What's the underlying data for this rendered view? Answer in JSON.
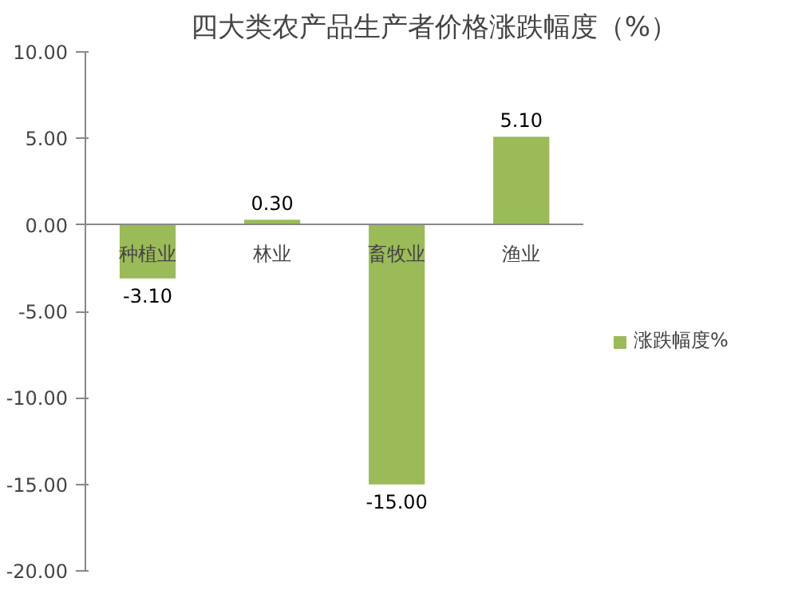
{
  "chart_data": {
    "type": "bar",
    "title": "四大类农产品生产者价格涨跌幅度（%）",
    "categories": [
      "种植业",
      "林业",
      "畜牧业",
      "渔业"
    ],
    "series": [
      {
        "name": "涨跌幅度%",
        "color": "#9bbb59",
        "values": [
          -3.1,
          0.3,
          -15.0,
          5.1
        ],
        "value_labels": [
          "-3.10",
          "0.30",
          "-15.00",
          "5.10"
        ]
      }
    ],
    "ylim": [
      -20,
      10
    ],
    "yticks": [
      {
        "value": -20,
        "label": "-20.00"
      },
      {
        "value": -15,
        "label": "-15.00"
      },
      {
        "value": -10,
        "label": "-10.00"
      },
      {
        "value": -5,
        "label": "-5.00"
      },
      {
        "value": 0,
        "label": "0.00"
      },
      {
        "value": 5,
        "label": "5.00"
      },
      {
        "value": 10,
        "label": "10.00"
      }
    ],
    "grid": false,
    "legend": "right"
  }
}
